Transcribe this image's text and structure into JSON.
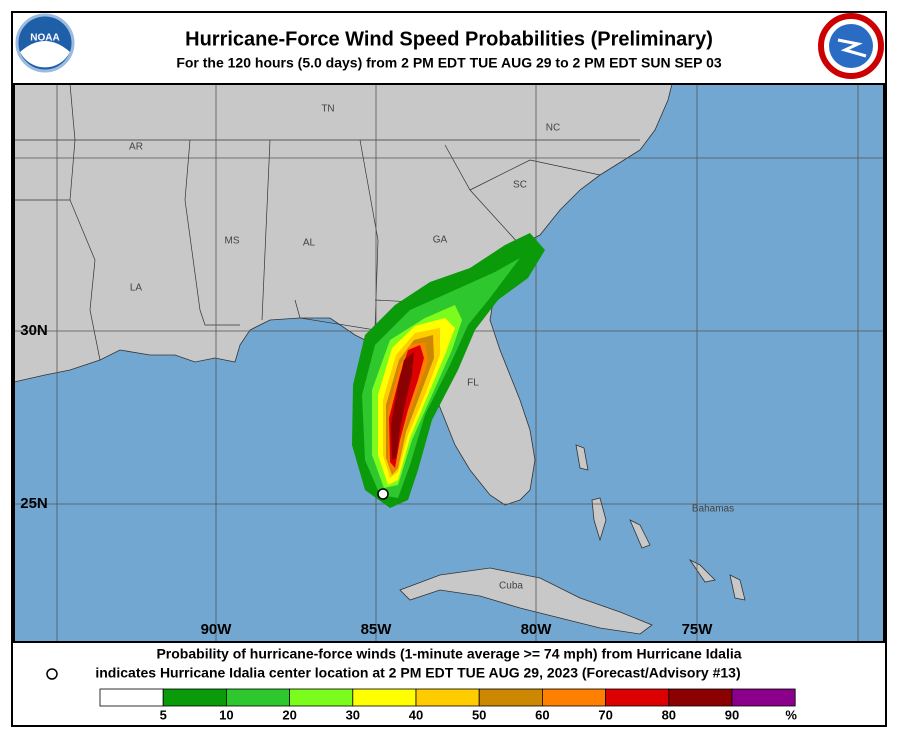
{
  "header": {
    "title": "Hurricane-Force Wind Speed Probabilities (Preliminary)",
    "subtitle": "For the 120 hours (5.0 days) from 2 PM EDT TUE AUG 29 to 2 PM EDT SUN SEP 03",
    "logo_left": "NOAA"
  },
  "map": {
    "states": [
      "TN",
      "NC",
      "AR",
      "SC",
      "MS",
      "AL",
      "GA",
      "LA",
      "FL"
    ],
    "places": [
      "Bahamas",
      "Cuba"
    ],
    "latitudes": [
      "30N",
      "25N"
    ],
    "longitudes": [
      "90W",
      "85W",
      "80W",
      "75W"
    ]
  },
  "footer": {
    "line1": "Probability of hurricane-force winds (1-minute average >= 74 mph) from Hurricane Idalia",
    "line2": "indicates Hurricane Idalia center location at 2 PM EDT TUE AUG 29, 2023 (Forecast/Advisory #13)"
  },
  "legend": {
    "colors": [
      "#ffffff",
      "#0a9a0a",
      "#2ec82e",
      "#7cfc1c",
      "#ffff00",
      "#ffcc00",
      "#cc8800",
      "#ff7f00",
      "#dd0000",
      "#8b0000",
      "#8b008b"
    ],
    "labels": [
      "5",
      "10",
      "20",
      "30",
      "40",
      "50",
      "60",
      "70",
      "80",
      "90",
      "%"
    ]
  }
}
